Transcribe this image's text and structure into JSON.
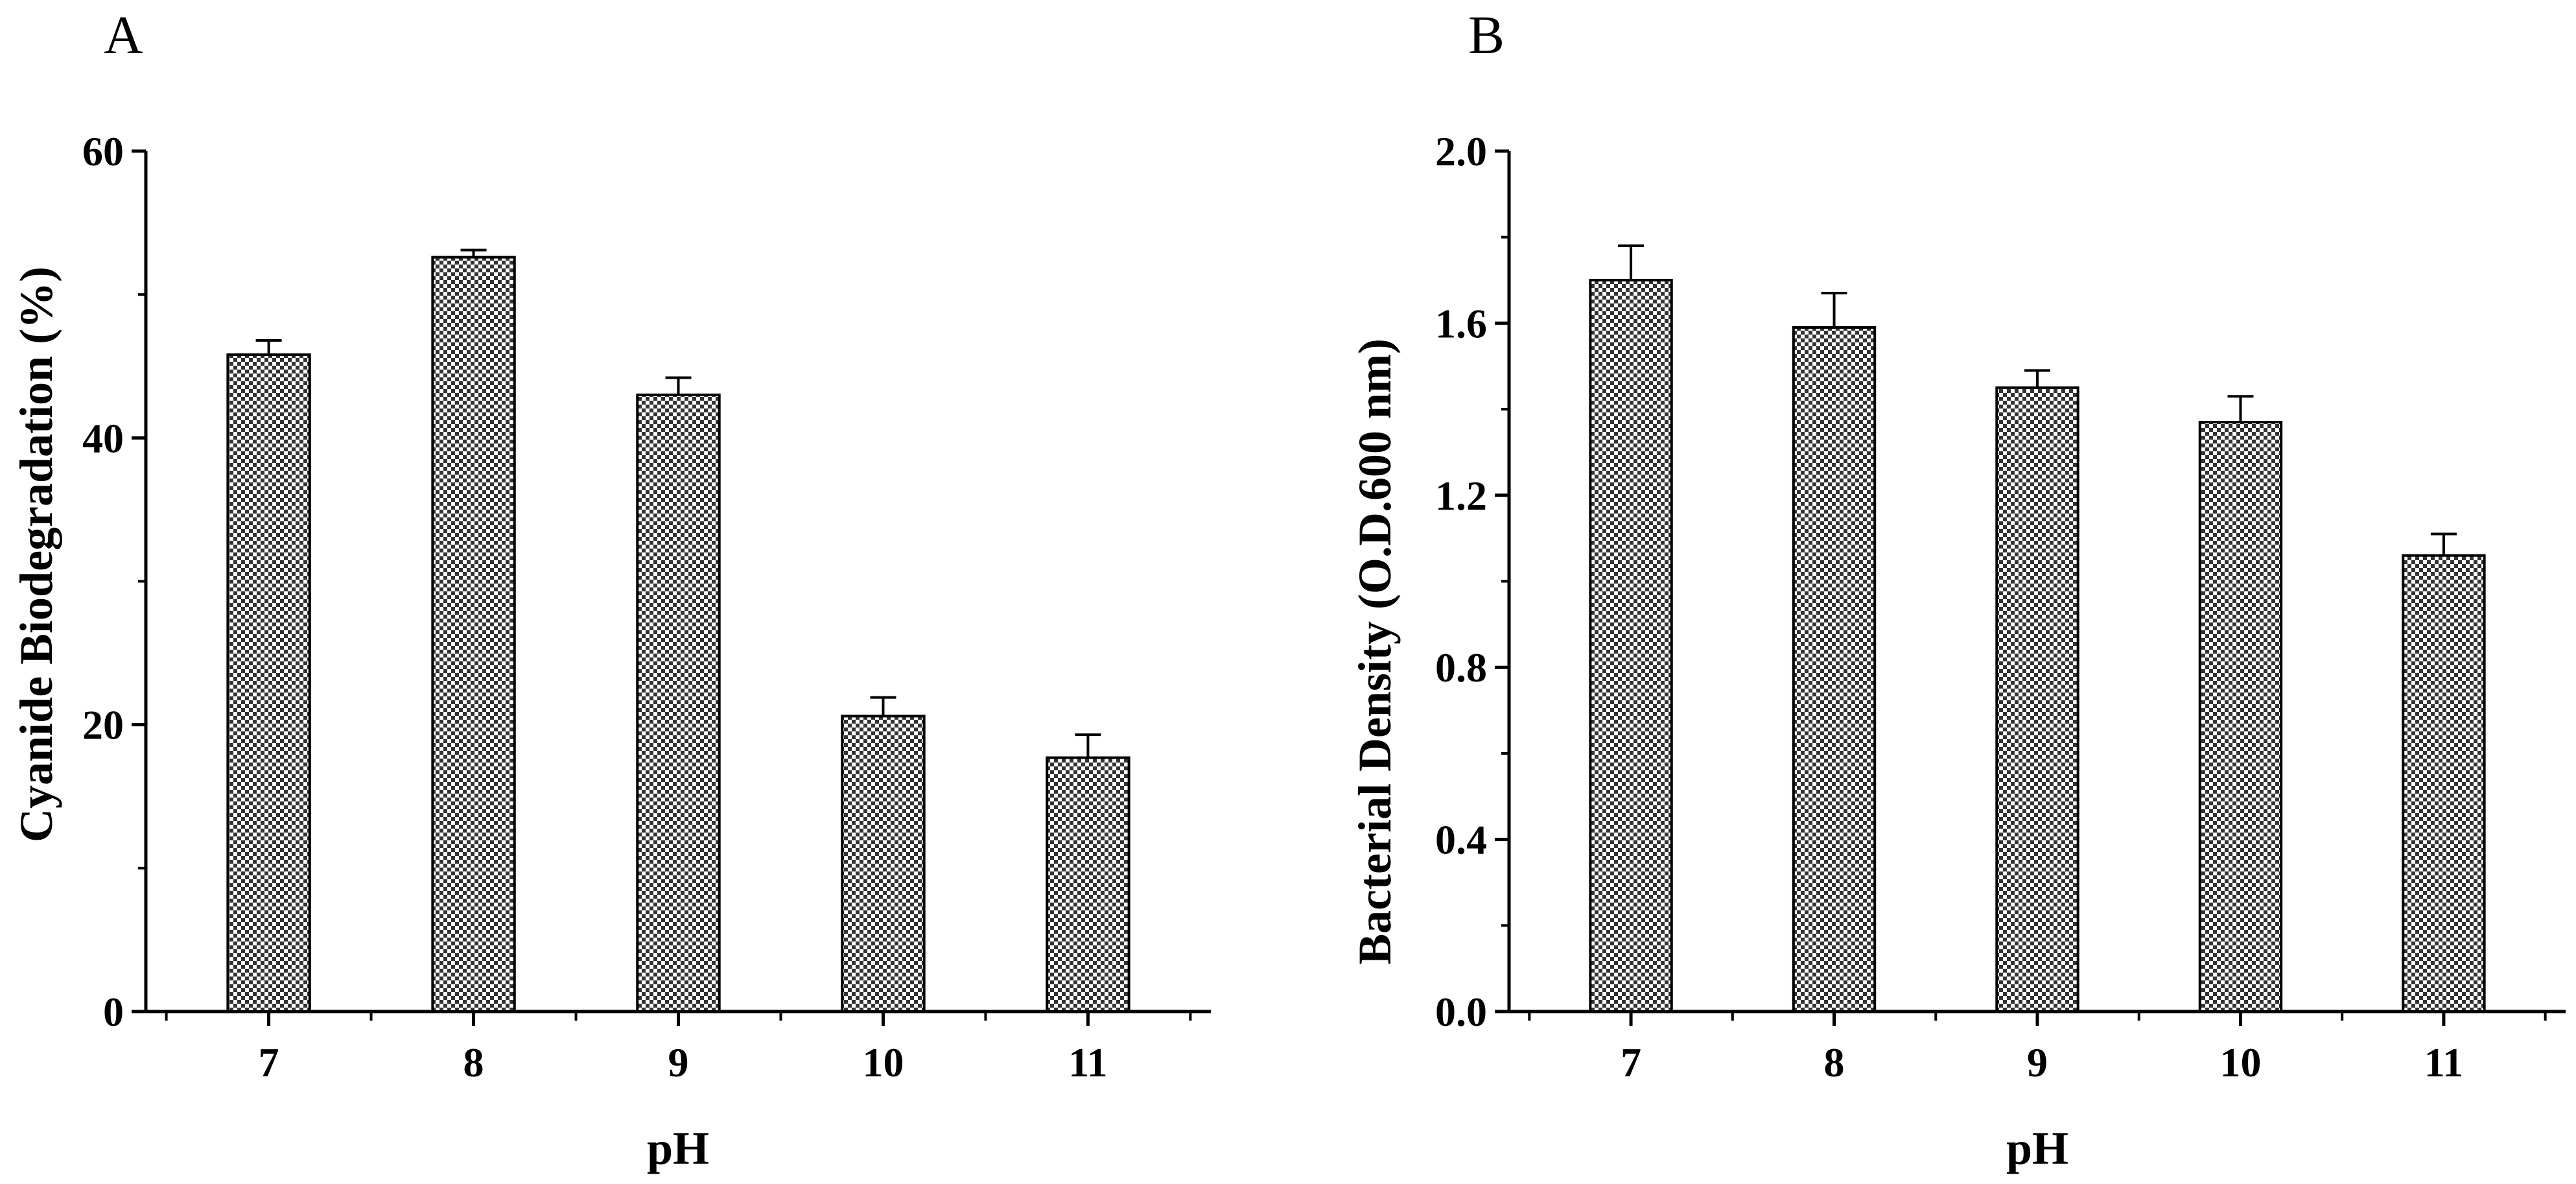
{
  "colors": {
    "bar_fill": "#8c8c8c",
    "bar_check_light": "#ffffff",
    "ink": "#000000"
  },
  "chart_data": [
    {
      "panel": "A",
      "type": "bar",
      "categories": [
        "7",
        "8",
        "9",
        "10",
        "11"
      ],
      "values": [
        45.8,
        52.6,
        43.0,
        20.6,
        17.7
      ],
      "errors": [
        1.0,
        0.5,
        1.2,
        1.3,
        1.6
      ],
      "xlabel": "pH",
      "ylabel": "Cyanide Biodegradation (%)",
      "ylim": [
        0,
        60
      ],
      "yticks": [
        "0",
        "20",
        "40",
        "60"
      ],
      "ytick_values": [
        0,
        20,
        40,
        60
      ],
      "grid": false
    },
    {
      "panel": "B",
      "type": "bar",
      "categories": [
        "7",
        "8",
        "9",
        "10",
        "11"
      ],
      "values": [
        1.7,
        1.59,
        1.45,
        1.37,
        1.06
      ],
      "errors": [
        0.08,
        0.08,
        0.04,
        0.06,
        0.05
      ],
      "xlabel": "pH",
      "ylabel": "Bacterial Density (O.D.600 nm)",
      "ylim": [
        0,
        2.0
      ],
      "yticks": [
        "0.0",
        "0.4",
        "0.8",
        "1.2",
        "1.6",
        "2.0"
      ],
      "ytick_values": [
        0.0,
        0.4,
        0.8,
        1.2,
        1.6,
        2.0
      ],
      "grid": false
    }
  ]
}
